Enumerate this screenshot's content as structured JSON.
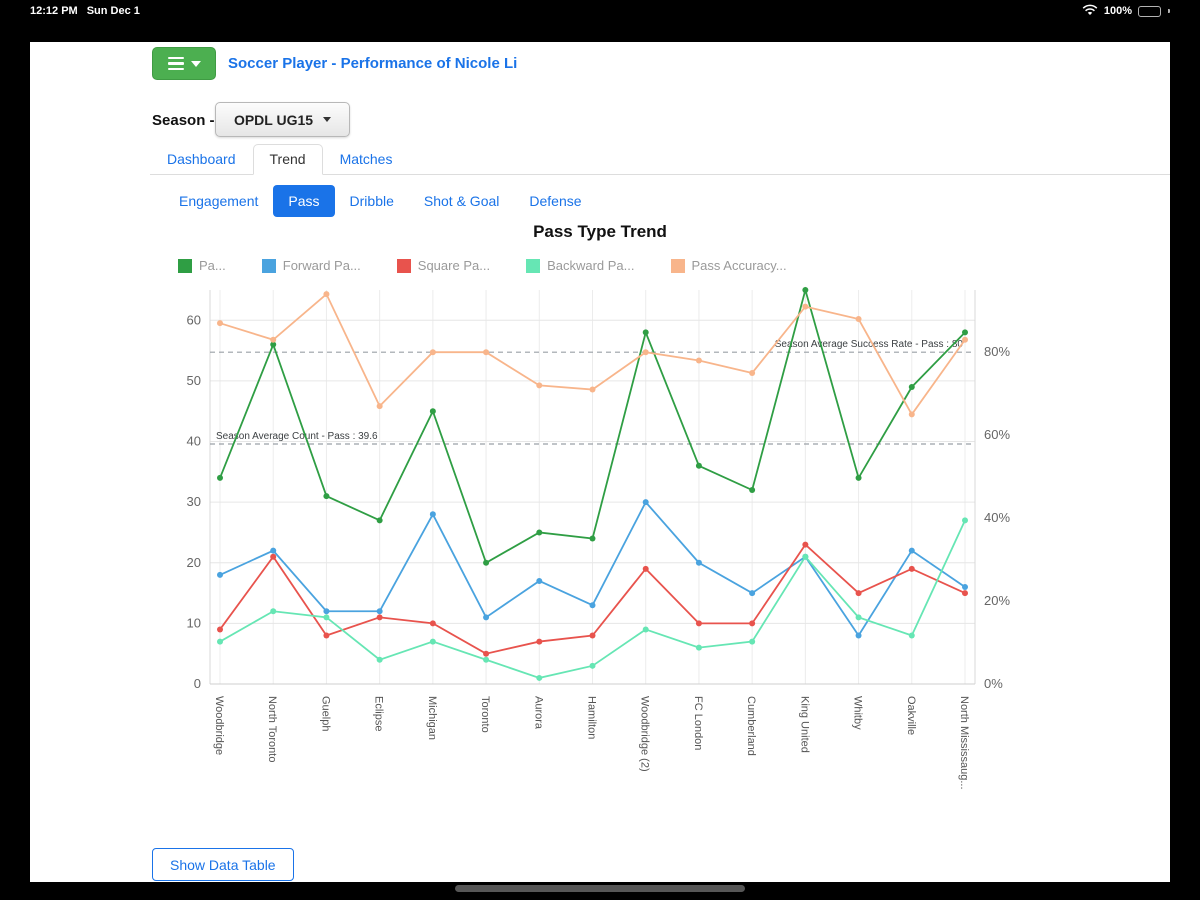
{
  "status_bar": {
    "time": "12:12 PM",
    "date": "Sun Dec 1",
    "battery_percent": "100%"
  },
  "header": {
    "title": "Soccer Player - Performance of Nicole Li"
  },
  "season": {
    "label": "Season -",
    "selected": "OPDL UG15"
  },
  "tabs": [
    {
      "label": "Dashboard"
    },
    {
      "label": "Trend"
    },
    {
      "label": "Matches"
    }
  ],
  "subtabs": [
    {
      "label": "Engagement"
    },
    {
      "label": "Pass"
    },
    {
      "label": "Dribble"
    },
    {
      "label": "Shot & Goal"
    },
    {
      "label": "Defense"
    }
  ],
  "footer": {
    "show_data_table_label": "Show Data Table"
  },
  "colors": {
    "accent_blue": "#1a73e8",
    "button_green": "#4caf50"
  },
  "chart_data": {
    "type": "line",
    "title": "Pass Type Trend",
    "legend_position": "top",
    "grid": true,
    "categories": [
      "Woodbridge",
      "North Toronto",
      "Guelph",
      "Eclipse",
      "Michigan",
      "Toronto",
      "Aurora",
      "Hamilton",
      "Woodbridge (2)",
      "FC London",
      "Cumberland",
      "King United",
      "Whitby",
      "Oakville",
      "North Mississaug..."
    ],
    "left_axis": {
      "ticks": [
        0,
        10,
        20,
        30,
        40,
        50,
        60
      ],
      "max": 65,
      "min": 0
    },
    "right_axis": {
      "ticks": [
        "0%",
        "20%",
        "40%",
        "60%",
        "80%"
      ],
      "tick_values": [
        0,
        20,
        40,
        60,
        80
      ],
      "max": 95,
      "min": 0
    },
    "series": [
      {
        "name": "Pass",
        "label": "Pa...",
        "color": "#2f9e44",
        "axis": "left",
        "values": [
          34,
          56,
          31,
          27,
          45,
          20,
          25,
          24,
          58,
          36,
          32,
          65,
          34,
          49,
          58
        ]
      },
      {
        "name": "Forward Pass",
        "label": "Forward Pa...",
        "color": "#4aa3df",
        "axis": "left",
        "values": [
          18,
          22,
          12,
          12,
          28,
          11,
          17,
          13,
          30,
          20,
          15,
          21,
          8,
          22,
          16
        ]
      },
      {
        "name": "Square Pass",
        "label": "Square Pa...",
        "color": "#e8534d",
        "axis": "left",
        "values": [
          9,
          21,
          8,
          11,
          10,
          5,
          7,
          8,
          19,
          10,
          10,
          23,
          15,
          19,
          15
        ]
      },
      {
        "name": "Backward Pass",
        "label": "Backward Pa...",
        "color": "#66e6b4",
        "axis": "left",
        "values": [
          7,
          12,
          11,
          4,
          7,
          4,
          1,
          3,
          9,
          6,
          7,
          21,
          11,
          8,
          27
        ]
      },
      {
        "name": "Pass Accuracy",
        "label": "Pass Accuracy...",
        "color": "#f8b58b",
        "axis": "right",
        "values": [
          87,
          83,
          94,
          67,
          80,
          80,
          72,
          71,
          80,
          78,
          75,
          91,
          88,
          65,
          83
        ]
      }
    ],
    "annotations": [
      {
        "text": "Season Average Count - Pass : 39.6",
        "value": 39.6,
        "axis": "left",
        "align": "left"
      },
      {
        "text": "Season Average Success Rate - Pass : 80",
        "value": 80,
        "axis": "right",
        "align": "right"
      }
    ]
  }
}
